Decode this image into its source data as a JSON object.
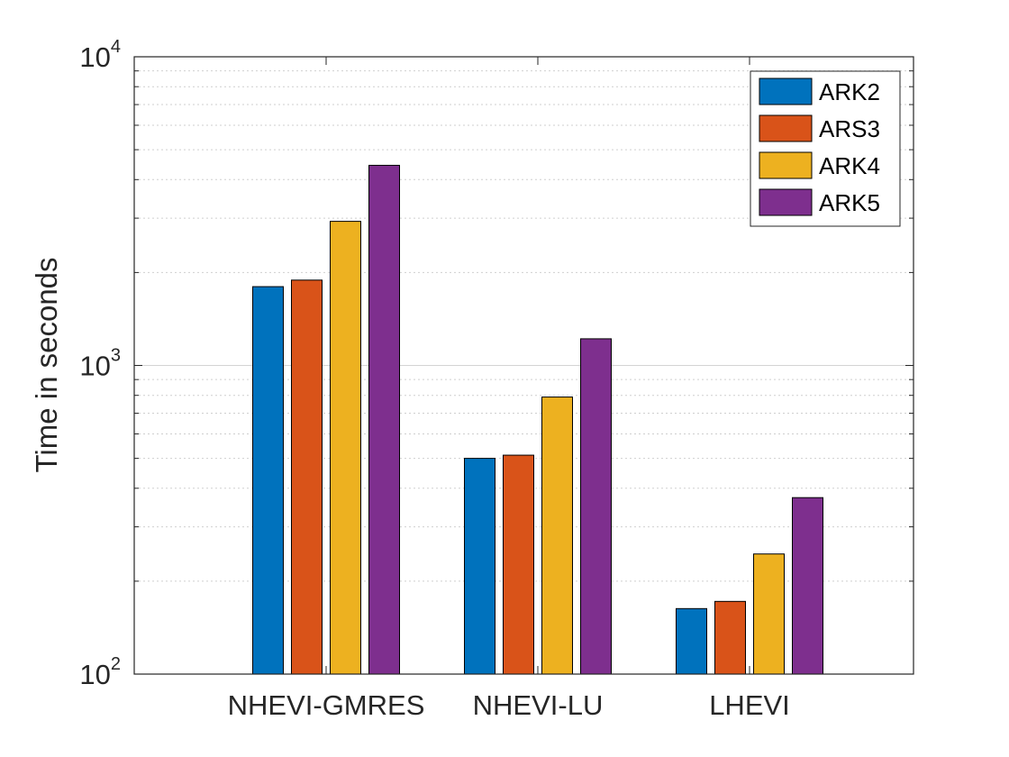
{
  "chart_data": {
    "type": "bar",
    "yscale": "log",
    "categories": [
      "NHEVI-GMRES",
      "NHEVI-LU",
      "LHEVI"
    ],
    "series": [
      {
        "name": "ARK2",
        "color": "#0072BD",
        "values": [
          1800,
          500,
          163
        ]
      },
      {
        "name": "ARS3",
        "color": "#D95319",
        "values": [
          1890,
          512,
          172
        ]
      },
      {
        "name": "ARK4",
        "color": "#EDB120",
        "values": [
          2930,
          790,
          245
        ]
      },
      {
        "name": "ARK5",
        "color": "#7E2F8E",
        "values": [
          4450,
          1220,
          373
        ]
      }
    ],
    "ylabel": "Time in seconds",
    "ylim": [
      100,
      10000
    ],
    "yticks": [
      {
        "base": "10",
        "exp": "2"
      },
      {
        "base": "10",
        "exp": "3"
      },
      {
        "base": "10",
        "exp": "4"
      }
    ],
    "grid": "y-major-and-minor-dotted",
    "legend": "top-right"
  }
}
